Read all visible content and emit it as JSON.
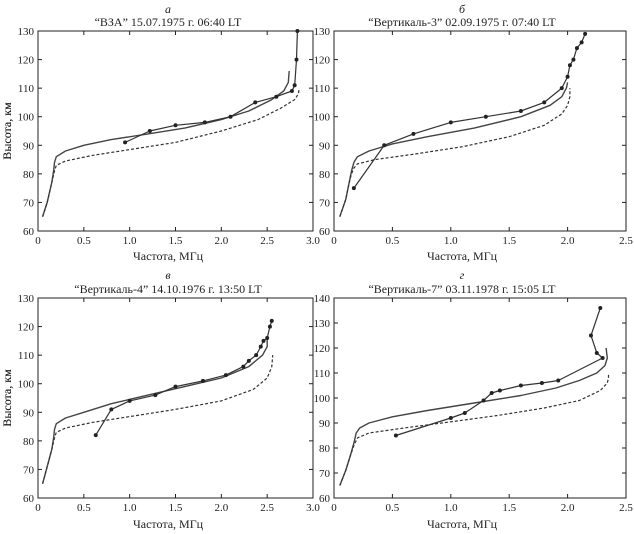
{
  "chart_data": [
    {
      "type": "line",
      "letter": "а",
      "title": "“ВЗА” 15.07.1975 г. 06:40 LT",
      "xlabel": "Частота, МГц",
      "ylabel": "Высота, км",
      "xlim": [
        0,
        3.0
      ],
      "ylim": [
        60,
        130
      ],
      "xticks": [
        "0",
        "0.5",
        "1.0",
        "1.5",
        "2.0",
        "2.5",
        "3.0"
      ],
      "yticks": [
        "60",
        "70",
        "80",
        "90",
        "100",
        "110",
        "120",
        "130"
      ],
      "series": [
        {
          "style": "solid",
          "x": [
            0.05,
            0.1,
            0.15,
            0.17,
            0.18,
            0.2,
            0.3,
            0.5,
            0.8,
            1.2,
            1.6,
            2.0,
            2.3,
            2.55,
            2.68,
            2.73,
            2.74
          ],
          "y": [
            65,
            70,
            77,
            81,
            84,
            86,
            88,
            90,
            92,
            94,
            96,
            99,
            102,
            106,
            109,
            112,
            116
          ]
        },
        {
          "style": "dashed",
          "x": [
            0.05,
            0.1,
            0.15,
            0.18,
            0.2,
            0.3,
            0.6,
            1.0,
            1.5,
            2.0,
            2.4,
            2.65,
            2.8,
            2.84,
            2.85
          ],
          "y": [
            65,
            70,
            77,
            81,
            83,
            84.5,
            86.5,
            88.5,
            91,
            95,
            99,
            103,
            106,
            108,
            110
          ]
        },
        {
          "style": "markers",
          "x": [
            0.95,
            1.22,
            1.5,
            1.82,
            2.1,
            2.37,
            2.6,
            2.77,
            2.8,
            2.82,
            2.83
          ],
          "y": [
            91,
            95,
            97,
            98,
            100,
            105,
            107,
            109,
            111,
            120,
            130
          ]
        }
      ]
    },
    {
      "type": "line",
      "letter": "б",
      "title": "“Вертикаль-3” 02.09.1975 г. 07:40 LT",
      "xlabel": "Частота, МГц",
      "ylabel": "Высота, км",
      "xlim": [
        0,
        2.5
      ],
      "ylim": [
        60,
        130
      ],
      "xticks": [
        "0",
        "0.5",
        "1.0",
        "1.5",
        "2.0",
        "2.5"
      ],
      "yticks": [
        "60",
        "70",
        "80",
        "90",
        "100",
        "110",
        "120",
        "130"
      ],
      "series": [
        {
          "style": "solid",
          "x": [
            0.05,
            0.1,
            0.13,
            0.15,
            0.17,
            0.2,
            0.3,
            0.5,
            0.8,
            1.2,
            1.6,
            1.85,
            1.95,
            1.99,
            2.0
          ],
          "y": [
            65,
            71,
            77,
            81,
            84,
            86,
            88,
            90.5,
            93,
            96,
            100,
            104,
            107,
            110,
            112
          ]
        },
        {
          "style": "dashed",
          "x": [
            0.05,
            0.1,
            0.13,
            0.15,
            0.17,
            0.2,
            0.35,
            0.7,
            1.1,
            1.5,
            1.8,
            1.95,
            2.0,
            2.02,
            2.02
          ],
          "y": [
            65,
            71,
            77,
            80,
            82,
            83.5,
            85,
            87,
            89.5,
            93,
            97,
            101,
            104,
            107,
            110
          ]
        },
        {
          "style": "markers",
          "x": [
            0.17,
            0.43,
            0.68,
            1.0,
            1.3,
            1.6,
            1.8,
            1.95,
            2.0,
            2.02,
            2.05,
            2.08,
            2.12,
            2.15
          ],
          "y": [
            75,
            90,
            94,
            98,
            100,
            102,
            105,
            110,
            114,
            118,
            120,
            124,
            126,
            129
          ]
        }
      ]
    },
    {
      "type": "line",
      "letter": "в",
      "title": "“Вертикаль-4” 14.10.1976 г. 13:50 LT",
      "xlabel": "Частота, МГц",
      "ylabel": "Высота, км",
      "xlim": [
        0,
        3.0
      ],
      "ylim": [
        60,
        130
      ],
      "xticks": [
        "0",
        "0.5",
        "1.0",
        "1.5",
        "2.0",
        "2.5",
        "3.0"
      ],
      "yticks": [
        "60",
        "70",
        "80",
        "90",
        "100",
        "110",
        "120",
        "130"
      ],
      "series": [
        {
          "style": "solid",
          "x": [
            0.05,
            0.1,
            0.15,
            0.17,
            0.18,
            0.2,
            0.3,
            0.5,
            0.8,
            1.2,
            1.6,
            2.0,
            2.3,
            2.45,
            2.5,
            2.5
          ],
          "y": [
            65,
            71,
            77,
            81,
            84,
            86,
            88,
            90,
            93,
            96,
            99,
            102,
            106,
            110,
            113,
            116
          ]
        },
        {
          "style": "dashed",
          "x": [
            0.05,
            0.1,
            0.15,
            0.18,
            0.2,
            0.3,
            0.6,
            1.0,
            1.5,
            2.0,
            2.35,
            2.5,
            2.55,
            2.56
          ],
          "y": [
            65,
            71,
            77,
            81,
            83,
            84.5,
            86.5,
            88.5,
            91,
            94,
            98,
            102,
            106,
            110
          ]
        },
        {
          "style": "markers",
          "x": [
            0.63,
            0.8,
            1.0,
            1.28,
            1.5,
            1.8,
            2.05,
            2.24,
            2.3,
            2.38,
            2.43,
            2.46,
            2.5,
            2.53,
            2.55
          ],
          "y": [
            82,
            91,
            94,
            96,
            99,
            101,
            103,
            106,
            108,
            110,
            113,
            115,
            116,
            120,
            122
          ]
        }
      ]
    },
    {
      "type": "line",
      "letter": "г",
      "title": "“Вертикаль-7” 03.11.1978 г. 15:05 LT",
      "xlabel": "Частота, МГц",
      "ylabel": "Высота, км",
      "xlim": [
        0,
        2.5
      ],
      "ylim": [
        60,
        140
      ],
      "xticks": [
        "0",
        "0.5",
        "1.0",
        "1.5",
        "2.0",
        "2.5"
      ],
      "yticks": [
        "60",
        "70",
        "80",
        "90",
        "100",
        "110",
        "120",
        "130",
        "140"
      ],
      "series": [
        {
          "style": "solid",
          "x": [
            0.05,
            0.1,
            0.14,
            0.17,
            0.19,
            0.22,
            0.3,
            0.5,
            0.8,
            1.2,
            1.6,
            1.9,
            2.1,
            2.25,
            2.32,
            2.34,
            2.33
          ],
          "y": [
            65,
            71,
            77,
            82,
            86,
            88,
            90,
            92.5,
            95,
            98,
            101,
            104,
            107,
            110,
            113,
            116,
            120
          ]
        },
        {
          "style": "dashed",
          "x": [
            0.05,
            0.1,
            0.14,
            0.17,
            0.2,
            0.3,
            0.6,
            1.0,
            1.4,
            1.8,
            2.1,
            2.28,
            2.34,
            2.35,
            2.35
          ],
          "y": [
            65,
            71,
            77,
            81,
            84,
            86,
            88,
            90.5,
            93,
            96,
            99,
            103,
            106,
            108,
            110
          ]
        },
        {
          "style": "markers",
          "x": [
            0.53,
            1.0,
            1.12,
            1.28,
            1.35,
            1.42,
            1.6,
            1.78,
            1.92,
            2.3,
            2.25,
            2.2,
            2.28
          ],
          "y": [
            85,
            92,
            94,
            99,
            102,
            103,
            105,
            106,
            107,
            116,
            118,
            125,
            136
          ]
        }
      ]
    }
  ]
}
